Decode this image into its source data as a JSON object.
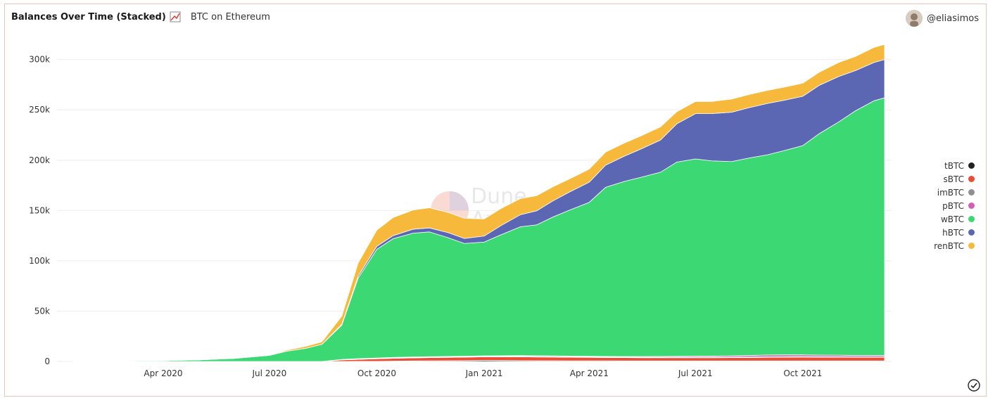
{
  "header": {
    "title": "Balances Over Time (Stacked)",
    "subtitle": "BTC on Ethereum",
    "user": "@eliasimos"
  },
  "watermark": {
    "line1": "Dune",
    "line2": "Analytics"
  },
  "colors": {
    "tBTC": "#222222",
    "sBTC": "#ea4c34",
    "imBTC": "#8f8f8f",
    "pBTC": "#d25fb5",
    "wBTC": "#3bd873",
    "hBTC": "#5b67b2",
    "renBTC": "#f6b93b"
  },
  "chart_data": {
    "type": "area",
    "stacked": true,
    "title": "Balances Over Time (Stacked)",
    "xlabel": "",
    "ylabel": "",
    "x_ticks": [
      "Apr 2020",
      "Jul 2020",
      "Oct 2020",
      "Jan 2021",
      "Apr 2021",
      "Jul 2021",
      "Oct 2021"
    ],
    "y_ticks": [
      "0",
      "50k",
      "100k",
      "150k",
      "200k",
      "250k",
      "300k"
    ],
    "ylim": [
      0,
      320000
    ],
    "grid": true,
    "legend_position": "right",
    "x": [
      "2020-01-15",
      "2020-03-01",
      "2020-04-01",
      "2020-05-01",
      "2020-06-01",
      "2020-07-01",
      "2020-07-15",
      "2020-08-01",
      "2020-08-15",
      "2020-09-01",
      "2020-09-15",
      "2020-10-01",
      "2020-10-15",
      "2020-11-01",
      "2020-11-15",
      "2020-12-01",
      "2020-12-15",
      "2021-01-01",
      "2021-01-15",
      "2021-02-01",
      "2021-02-15",
      "2021-03-01",
      "2021-03-15",
      "2021-04-01",
      "2021-04-15",
      "2021-05-01",
      "2021-05-15",
      "2021-06-01",
      "2021-06-15",
      "2021-07-01",
      "2021-07-15",
      "2021-08-01",
      "2021-08-15",
      "2021-09-01",
      "2021-09-15",
      "2021-10-01",
      "2021-10-15",
      "2021-11-01",
      "2021-11-15",
      "2021-12-01",
      "2021-12-10"
    ],
    "series": [
      {
        "name": "tBTC",
        "values": [
          0,
          0,
          0,
          0,
          0,
          0,
          0,
          0,
          0,
          0,
          50,
          100,
          300,
          500,
          600,
          700,
          800,
          1000,
          900,
          800,
          700,
          700,
          600,
          600,
          600,
          500,
          500,
          500,
          500,
          500,
          500,
          500,
          500,
          500,
          500,
          500,
          500,
          500,
          500,
          500,
          500
        ]
      },
      {
        "name": "sBTC",
        "values": [
          0,
          0,
          0,
          0,
          0,
          0,
          0,
          0,
          0,
          1500,
          2000,
          2500,
          2800,
          3000,
          3200,
          3300,
          3400,
          3600,
          3700,
          3800,
          3700,
          3600,
          3500,
          3400,
          3300,
          3300,
          3200,
          3200,
          3200,
          3200,
          3200,
          3300,
          3400,
          3600,
          3700,
          3800,
          3700,
          3700,
          3600,
          3600,
          3600
        ]
      },
      {
        "name": "imBTC",
        "values": [
          0,
          0,
          0,
          0,
          0,
          0,
          0,
          0,
          0,
          300,
          400,
          500,
          500,
          500,
          500,
          500,
          500,
          500,
          500,
          500,
          500,
          500,
          500,
          500,
          500,
          500,
          500,
          500,
          500,
          500,
          500,
          500,
          500,
          500,
          500,
          500,
          500,
          500,
          500,
          500,
          500
        ]
      },
      {
        "name": "pBTC",
        "values": [
          0,
          0,
          0,
          0,
          0,
          0,
          0,
          0,
          0,
          200,
          300,
          300,
          400,
          400,
          400,
          500,
          500,
          500,
          600,
          700,
          800,
          800,
          700,
          600,
          600,
          600,
          700,
          800,
          900,
          1000,
          1100,
          1300,
          1500,
          1800,
          1800,
          1700,
          1600,
          1500,
          1400,
          1400,
          1400
        ]
      },
      {
        "name": "wBTC",
        "values": [
          200,
          500,
          800,
          1500,
          3000,
          6000,
          10000,
          13000,
          17000,
          34000,
          80000,
          108000,
          118000,
          123000,
          124000,
          118000,
          112000,
          113000,
          120000,
          128000,
          130000,
          138000,
          145000,
          153000,
          168000,
          174000,
          178000,
          183000,
          193000,
          196000,
          194000,
          193000,
          196000,
          199000,
          203000,
          208000,
          220000,
          232000,
          243000,
          253000,
          256000
        ]
      },
      {
        "name": "hBTC",
        "values": [
          0,
          0,
          0,
          0,
          0,
          0,
          0,
          0,
          0,
          1000,
          2000,
          3000,
          3000,
          4000,
          4000,
          5000,
          5000,
          6000,
          9000,
          12000,
          14000,
          16000,
          18000,
          20000,
          22000,
          25000,
          28000,
          32000,
          38000,
          45000,
          47000,
          49000,
          50000,
          51000,
          50000,
          49000,
          48000,
          45000,
          40000,
          38000,
          38000
        ]
      },
      {
        "name": "renBTC",
        "values": [
          0,
          0,
          0,
          0,
          0,
          0,
          1000,
          2000,
          2500,
          8000,
          13000,
          16000,
          18000,
          19000,
          20000,
          20000,
          20000,
          17000,
          17000,
          16000,
          15000,
          14000,
          13000,
          13000,
          13000,
          13000,
          13000,
          13000,
          12000,
          12000,
          12000,
          13000,
          13000,
          13000,
          13000,
          13000,
          13000,
          14000,
          14000,
          15000,
          15000
        ]
      }
    ]
  }
}
